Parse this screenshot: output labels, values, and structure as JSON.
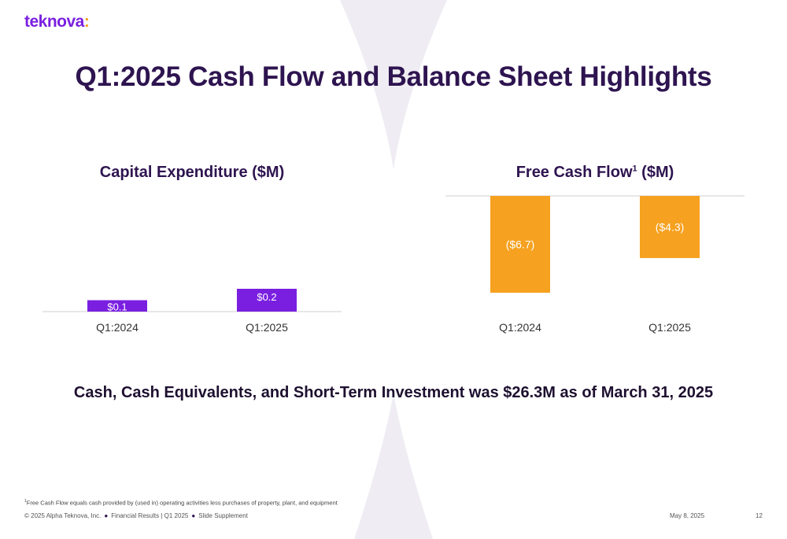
{
  "brand": {
    "name": "teknova",
    "accent": "#7a1fe0",
    "dot_color": "#f6a11f"
  },
  "slide_title": "Q1:2025 Cash Flow and Balance Sheet Highlights",
  "chart_data": [
    {
      "type": "bar",
      "title": "Capital Expenditure ($M)",
      "categories": [
        "Q1:2024",
        "Q1:2025"
      ],
      "values": [
        0.1,
        0.2
      ],
      "labels": [
        "$0.1",
        "$0.2"
      ],
      "color": "#7a1fe0",
      "ylim": [
        0,
        0.2
      ]
    },
    {
      "type": "bar",
      "title": "Free Cash Flow",
      "title_sup": "1",
      "title_suffix": " ($M)",
      "categories": [
        "Q1:2024",
        "Q1:2025"
      ],
      "values": [
        -6.7,
        -4.3
      ],
      "labels": [
        "($6.7)",
        "($4.3)"
      ],
      "color": "#f6a11f",
      "ylim": [
        -6.7,
        0
      ]
    }
  ],
  "headline": "Cash, Cash Equivalents, and Short-Term Investment was $26.3M as of March 31, 2025",
  "footnote": {
    "marker": "1",
    "text": "Free Cash Flow equals cash provided by (used in) operating activities less purchases of property, plant, and equipment"
  },
  "footer": {
    "copyright": "© 2025 Alpha Teknova, Inc.",
    "section": "Financial Results | Q1 2025",
    "supplement": "Slide Supplement",
    "separator": "●",
    "date": "May 8, 2025",
    "page": "12"
  }
}
